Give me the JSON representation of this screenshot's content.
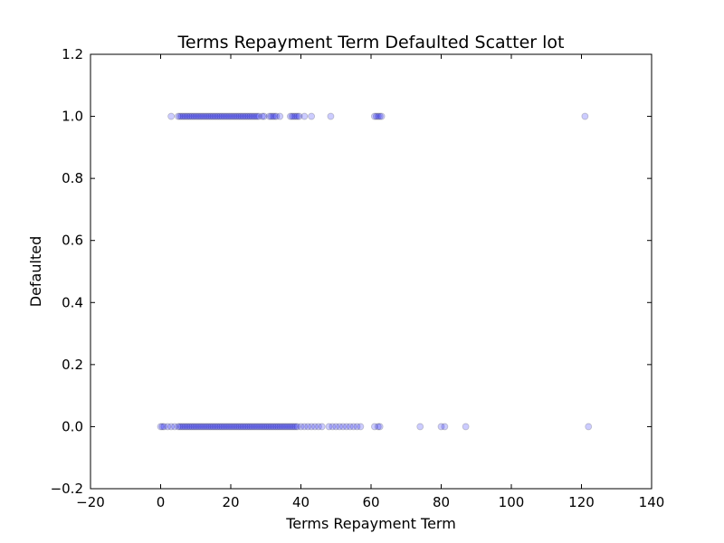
{
  "chart_data": {
    "type": "scatter",
    "title": "Terms Repayment Term Defaulted Scatter lot",
    "xlabel": "Terms Repayment Term",
    "ylabel": "Defaulted",
    "xlim": [
      -20,
      140
    ],
    "ylim": [
      -0.2,
      1.2
    ],
    "x_ticks": [
      -20,
      0,
      20,
      40,
      60,
      80,
      100,
      120,
      140
    ],
    "x_tick_labels": [
      "−20",
      "0",
      "20",
      "40",
      "60",
      "80",
      "100",
      "120",
      "140"
    ],
    "y_ticks": [
      -0.2,
      0.0,
      0.2,
      0.4,
      0.6,
      0.8,
      1.0,
      1.2
    ],
    "y_tick_labels": [
      "−0.2",
      "0.0",
      "0.2",
      "0.4",
      "0.6",
      "0.8",
      "1.0",
      "1.2"
    ],
    "grid": false,
    "legend": "none",
    "marker_color": "#0000ff",
    "marker_edge_color": "#000000",
    "marker_alpha": 0.2,
    "series": [
      {
        "x": [
          3,
          5,
          5.5,
          6,
          6.5,
          7,
          7.5,
          8,
          8.5,
          9,
          9.5,
          10,
          10.5,
          11,
          11.5,
          12,
          12.5,
          13,
          13.5,
          14,
          14.5,
          15,
          15.5,
          16,
          16.5,
          17,
          17.5,
          18,
          18.5,
          19,
          19.5,
          20,
          20.5,
          21,
          21.5,
          22,
          22.5,
          23,
          23.5,
          24,
          24.5,
          25,
          25.5,
          26,
          26.5,
          27,
          27.5,
          28,
          29,
          29.5,
          31,
          31.5,
          32,
          32.5,
          33,
          34,
          37,
          37.5,
          38,
          38.5,
          39,
          39.5,
          41,
          43,
          48.5,
          61,
          61.5,
          62,
          62.5,
          63,
          121
        ],
        "y": [
          1,
          1,
          1,
          1,
          1,
          1,
          1,
          1,
          1,
          1,
          1,
          1,
          1,
          1,
          1,
          1,
          1,
          1,
          1,
          1,
          1,
          1,
          1,
          1,
          1,
          1,
          1,
          1,
          1,
          1,
          1,
          1,
          1,
          1,
          1,
          1,
          1,
          1,
          1,
          1,
          1,
          1,
          1,
          1,
          1,
          1,
          1,
          1,
          1,
          1,
          1,
          1,
          1,
          1,
          1,
          1,
          1,
          1,
          1,
          1,
          1,
          1,
          1,
          1,
          1,
          1,
          1,
          1,
          1,
          1,
          1
        ]
      },
      {
        "x": [
          0,
          0.5,
          1,
          2,
          3,
          4,
          5,
          5.5,
          6,
          6.5,
          7,
          7.5,
          8,
          8.5,
          9,
          9.5,
          10,
          10.5,
          11,
          11.5,
          12,
          12.5,
          13,
          13.5,
          14,
          14.5,
          15,
          15.5,
          16,
          16.5,
          17,
          17.5,
          18,
          18.5,
          19,
          19.5,
          20,
          20.5,
          21,
          21.5,
          22,
          22.5,
          23,
          23.5,
          24,
          24.5,
          25,
          25.5,
          26,
          26.5,
          27,
          27.5,
          28,
          28.5,
          29,
          29.5,
          30,
          30.5,
          31,
          31.5,
          32,
          32.5,
          33,
          33.5,
          34,
          34.5,
          35,
          35.5,
          36,
          36.5,
          37,
          37.5,
          38,
          38.5,
          39,
          40,
          41,
          42,
          43,
          44,
          45,
          46,
          48,
          49,
          50,
          51,
          52,
          53,
          54,
          55,
          56,
          57,
          61,
          62,
          62.5,
          74,
          80,
          81,
          87,
          122
        ],
        "y": [
          0,
          0,
          0,
          0,
          0,
          0,
          0,
          0,
          0,
          0,
          0,
          0,
          0,
          0,
          0,
          0,
          0,
          0,
          0,
          0,
          0,
          0,
          0,
          0,
          0,
          0,
          0,
          0,
          0,
          0,
          0,
          0,
          0,
          0,
          0,
          0,
          0,
          0,
          0,
          0,
          0,
          0,
          0,
          0,
          0,
          0,
          0,
          0,
          0,
          0,
          0,
          0,
          0,
          0,
          0,
          0,
          0,
          0,
          0,
          0,
          0,
          0,
          0,
          0,
          0,
          0,
          0,
          0,
          0,
          0,
          0,
          0,
          0,
          0,
          0,
          0,
          0,
          0,
          0,
          0,
          0,
          0,
          0,
          0,
          0,
          0,
          0,
          0,
          0,
          0,
          0,
          0,
          0,
          0,
          0,
          0,
          0,
          0,
          0,
          0
        ]
      }
    ]
  }
}
